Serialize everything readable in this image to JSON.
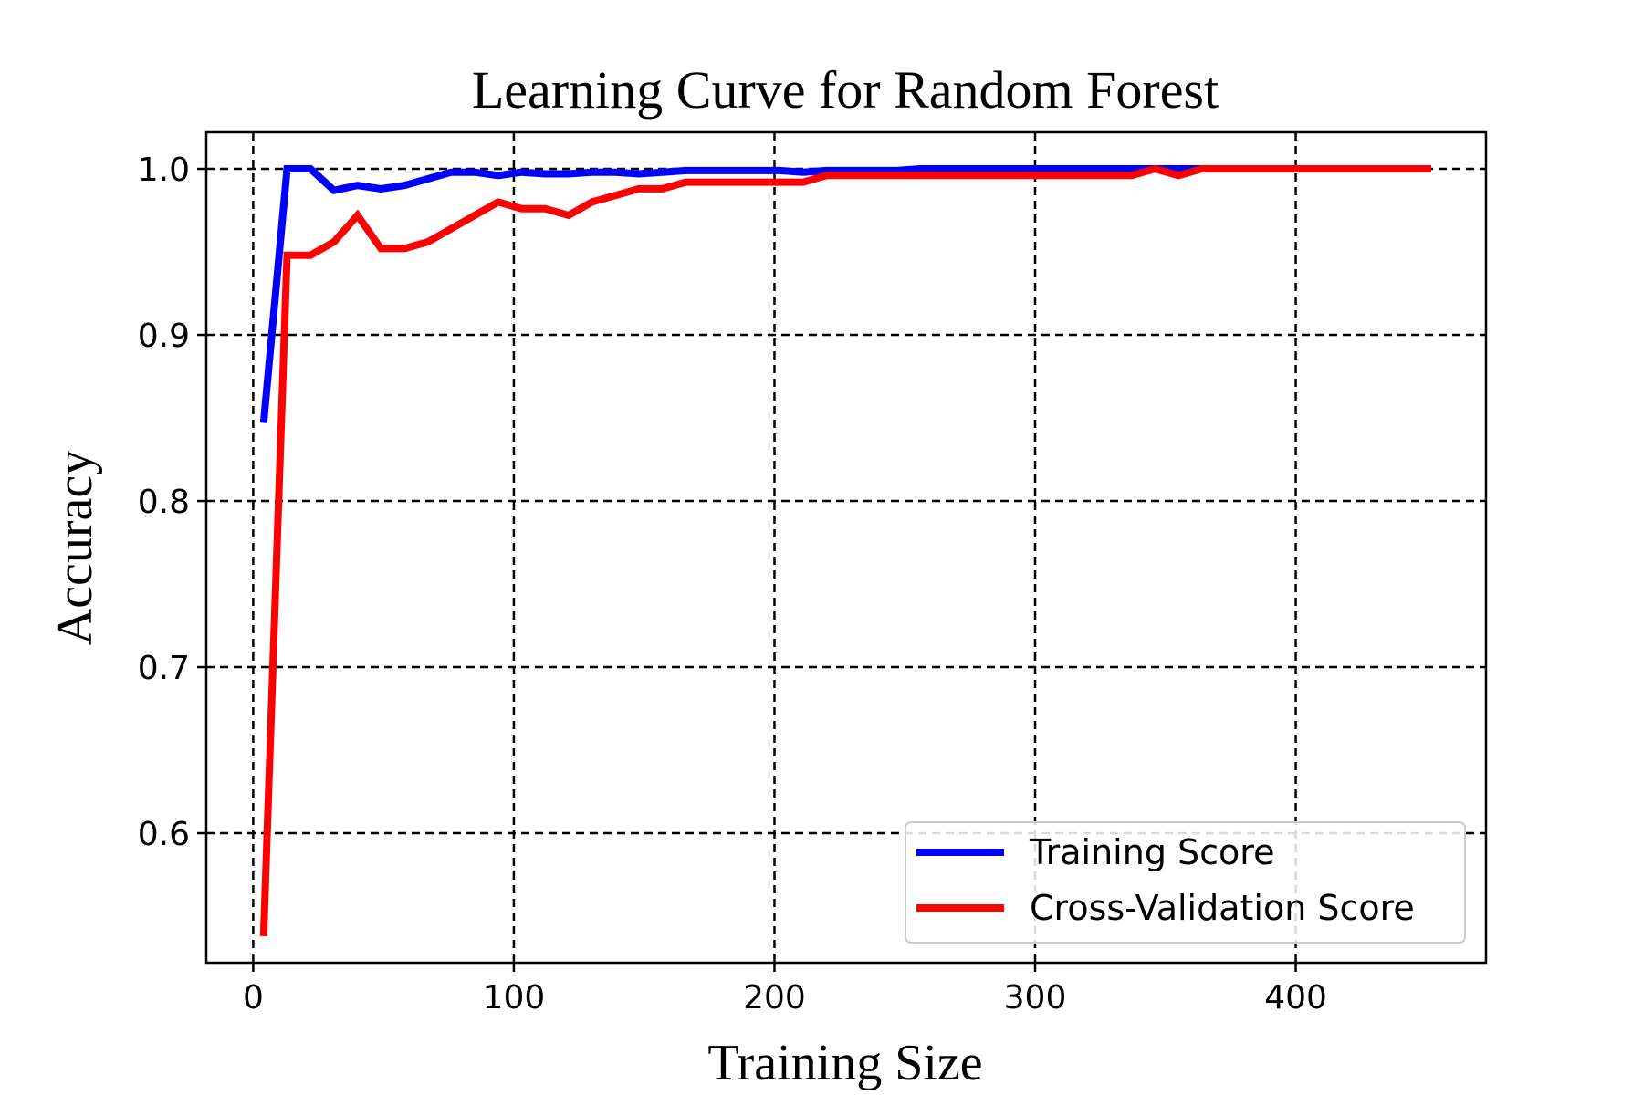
{
  "chart_data": {
    "type": "line",
    "title": "Learning Curve for Random Forest",
    "xlabel": "Training Size",
    "ylabel": "Accuracy",
    "xlim": [
      -18,
      473
    ],
    "ylim": [
      0.522,
      1.022
    ],
    "xticks": [
      0,
      100,
      200,
      300,
      400
    ],
    "xtick_labels": [
      "0",
      "100",
      "200",
      "300",
      "400"
    ],
    "yticks": [
      0.6,
      0.7,
      0.8,
      0.9,
      1.0
    ],
    "ytick_labels": [
      "0.6",
      "0.7",
      "0.8",
      "0.9",
      "1.0"
    ],
    "grid": true,
    "legend_position": "lower-right",
    "series": [
      {
        "name": "Training Score",
        "color": "#0000ff",
        "x": [
          4,
          13,
          22,
          31,
          40,
          49,
          58,
          67,
          76,
          85,
          94,
          103,
          112,
          121,
          130,
          139,
          148,
          157,
          166,
          175,
          184,
          193,
          202,
          211,
          220,
          229,
          238,
          247,
          256,
          265,
          274,
          283,
          292,
          301,
          310,
          319,
          328,
          337,
          346,
          355,
          364,
          373,
          382,
          391,
          400,
          409,
          418,
          427,
          436,
          445,
          452
        ],
        "y": [
          0.847,
          1.0,
          1.0,
          0.987,
          0.99,
          0.988,
          0.99,
          0.994,
          0.998,
          0.998,
          0.996,
          0.998,
          0.997,
          0.997,
          0.998,
          0.998,
          0.997,
          0.998,
          0.999,
          0.999,
          0.999,
          0.999,
          0.999,
          0.998,
          0.999,
          0.999,
          0.999,
          0.999,
          1.0,
          1.0,
          1.0,
          1.0,
          1.0,
          1.0,
          1.0,
          1.0,
          1.0,
          1.0,
          1.0,
          1.0,
          1.0,
          1.0,
          1.0,
          1.0,
          1.0,
          1.0,
          1.0,
          1.0,
          1.0,
          1.0,
          1.0
        ]
      },
      {
        "name": "Cross-Validation Score",
        "color": "#ff0000",
        "x": [
          4,
          13,
          22,
          31,
          40,
          49,
          58,
          67,
          76,
          85,
          94,
          103,
          112,
          121,
          130,
          139,
          148,
          157,
          166,
          175,
          184,
          193,
          202,
          211,
          220,
          229,
          238,
          247,
          256,
          265,
          274,
          283,
          292,
          301,
          310,
          319,
          328,
          337,
          346,
          355,
          364,
          373,
          382,
          391,
          400,
          409,
          418,
          427,
          436,
          445,
          452
        ],
        "y": [
          0.538,
          0.948,
          0.948,
          0.956,
          0.972,
          0.952,
          0.952,
          0.956,
          0.964,
          0.972,
          0.98,
          0.976,
          0.976,
          0.972,
          0.98,
          0.984,
          0.988,
          0.988,
          0.992,
          0.992,
          0.992,
          0.992,
          0.992,
          0.992,
          0.996,
          0.996,
          0.996,
          0.996,
          0.996,
          0.996,
          0.996,
          0.996,
          0.996,
          0.996,
          0.996,
          0.996,
          0.996,
          0.996,
          1.0,
          0.996,
          1.0,
          1.0,
          1.0,
          1.0,
          1.0,
          1.0,
          1.0,
          1.0,
          1.0,
          1.0,
          1.0
        ]
      }
    ]
  }
}
